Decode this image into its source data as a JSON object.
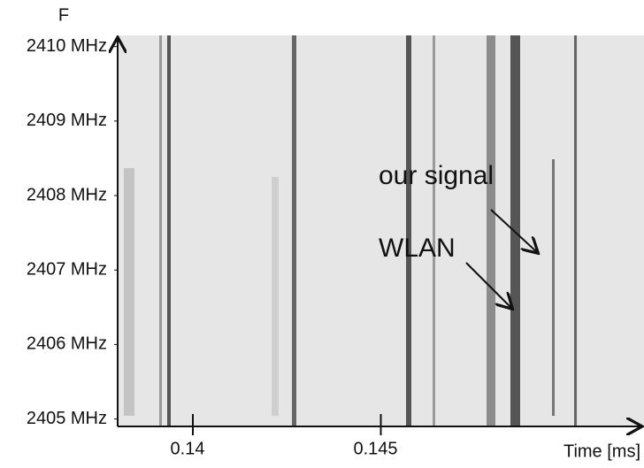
{
  "chart_data": {
    "type": "spectrogram",
    "y_label": "F",
    "x_label": "Time [ms]",
    "ylim": [
      2404.9,
      2410.15
    ],
    "yticks": [
      {
        "value": 2405,
        "label": "2405 MHz"
      },
      {
        "value": 2406,
        "label": "2406 MHz"
      },
      {
        "value": 2407,
        "label": "2407 MHz"
      },
      {
        "value": 2408,
        "label": "2408 MHz"
      },
      {
        "value": 2409,
        "label": "2409 MHz"
      },
      {
        "value": 2410,
        "label": "2410 MHz"
      }
    ],
    "xlim": [
      0.138,
      0.152
    ],
    "xticks": [
      0.14,
      0.145
    ],
    "annotations": [
      "our signal",
      "WLAN"
    ]
  }
}
